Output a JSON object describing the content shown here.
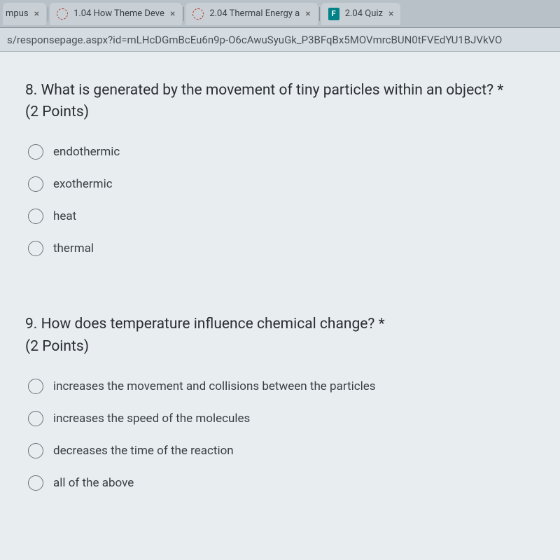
{
  "browser": {
    "tabs": [
      {
        "title": "mpus",
        "icon": "none",
        "close": true
      },
      {
        "title": "1.04 How Theme Deve",
        "icon": "loader",
        "close": true
      },
      {
        "title": "2.04 Thermal Energy a",
        "icon": "loader",
        "close": true
      },
      {
        "title": "2.04 Quiz",
        "icon": "forms",
        "close": true
      }
    ],
    "address": "s/responsepage.aspx?id=mLHcDGmBcEu6n9p-O6cAwuSyuGk_P3BFqBx5MOVmrcBUN0tFVEdYU1BJVkVO"
  },
  "questions": [
    {
      "number": "8.",
      "text": "What is generated by the movement of tiny particles within an object? *",
      "points": "(2 Points)",
      "options": [
        "endothermic",
        "exothermic",
        "heat",
        "thermal"
      ]
    },
    {
      "number": "9.",
      "text": "How does temperature influence chemical change? *",
      "points": "(2 Points)",
      "options": [
        "increases the movement and collisions between the particles",
        "increases the speed of the molecules",
        "decreases the time of the reaction",
        "all of the above"
      ]
    }
  ],
  "colors": {
    "tab_bg": "#c8d0d6",
    "content_bg": "#e8edf0",
    "text": "#2a2e32",
    "radio_border": "#6b7278"
  }
}
